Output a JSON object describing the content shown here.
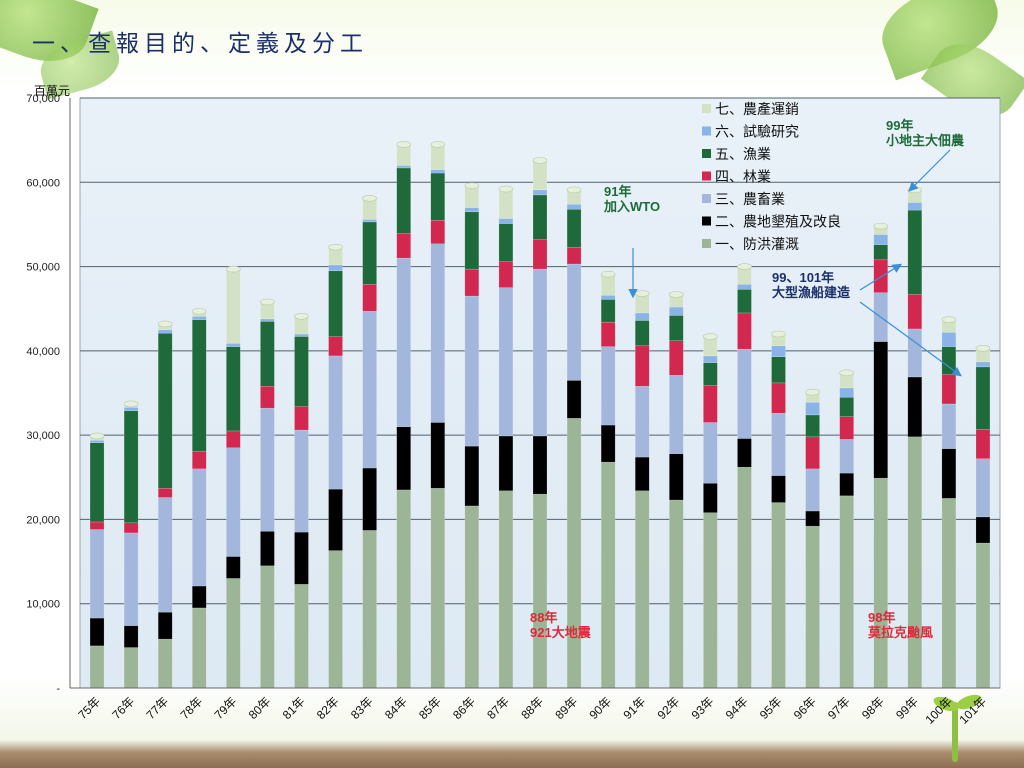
{
  "slide": {
    "title": "一、查報目的、定義及分工"
  },
  "chart_data": {
    "type": "bar",
    "stacked": true,
    "ylabel": "百萬元",
    "ylim": [
      0,
      70000
    ],
    "yticks": [
      "-",
      "10,000",
      "20,000",
      "30,000",
      "40,000",
      "50,000",
      "60,000",
      "70,000"
    ],
    "grid": true,
    "legend_position": "top-right",
    "categories": [
      "75年",
      "76年",
      "77年",
      "78年",
      "79年",
      "80年",
      "81年",
      "82年",
      "83年",
      "84年",
      "85年",
      "86年",
      "87年",
      "88年",
      "89年",
      "90年",
      "91年",
      "92年",
      "93年",
      "94年",
      "95年",
      "96年",
      "97年",
      "98年",
      "99年",
      "100年",
      "101年"
    ],
    "series": [
      {
        "name": "一、防洪灌溉",
        "color": "#9cb596",
        "values": [
          5000,
          4800,
          5800,
          9500,
          13000,
          14500,
          12300,
          16300,
          18700,
          23500,
          23700,
          21600,
          23400,
          23000,
          32000,
          26800,
          23400,
          22300,
          20800,
          26200,
          22000,
          19200,
          22800,
          24900,
          29800,
          22500,
          17200
        ]
      },
      {
        "name": "二、農地墾殖及改良",
        "color": "#000000",
        "values": [
          3300,
          2600,
          3200,
          2600,
          2600,
          4100,
          6200,
          7300,
          7400,
          7500,
          7800,
          7100,
          6500,
          6900,
          4500,
          4400,
          4000,
          5500,
          3500,
          3400,
          3200,
          1800,
          2700,
          16200,
          7100,
          5900,
          3100
        ]
      },
      {
        "name": "三、農畜業",
        "color": "#a3b6dc",
        "values": [
          10500,
          11000,
          13600,
          13900,
          12900,
          14600,
          12100,
          15800,
          18600,
          20000,
          21200,
          17800,
          17600,
          19800,
          13800,
          9300,
          8400,
          9300,
          7200,
          10600,
          7400,
          5000,
          4000,
          5800,
          5700,
          5300,
          6900
        ]
      },
      {
        "name": "四、林業",
        "color": "#d2284f",
        "values": [
          900,
          1200,
          1100,
          2100,
          2000,
          2600,
          2800,
          2300,
          3200,
          2900,
          2800,
          3200,
          3100,
          3500,
          2000,
          2900,
          4800,
          4100,
          4400,
          4300,
          3600,
          3800,
          2700,
          3900,
          4100,
          3500,
          3500
        ]
      },
      {
        "name": "五、漁業",
        "color": "#1e6a3b",
        "values": [
          9400,
          13300,
          18400,
          15600,
          10000,
          7700,
          8300,
          7800,
          7400,
          7800,
          5600,
          6800,
          4500,
          5300,
          4500,
          2700,
          3000,
          3000,
          2700,
          2800,
          3100,
          2600,
          2300,
          1800,
          10000,
          3300,
          7400
        ]
      },
      {
        "name": "六、試驗研究",
        "color": "#8ab4e8",
        "values": [
          300,
          400,
          400,
          400,
          400,
          300,
          300,
          700,
          300,
          300,
          400,
          500,
          600,
          600,
          600,
          500,
          900,
          1000,
          800,
          600,
          1300,
          1500,
          1100,
          1200,
          900,
          1700,
          600
        ]
      },
      {
        "name": "七、農產運銷",
        "color": "#d3e2c4",
        "values": [
          500,
          400,
          700,
          600,
          8800,
          2000,
          2100,
          2100,
          2500,
          2500,
          3000,
          2600,
          3500,
          3500,
          1700,
          2500,
          2300,
          1500,
          2300,
          2100,
          1400,
          1200,
          1800,
          1000,
          1500,
          1500,
          1600
        ]
      }
    ],
    "annotations": [
      {
        "text": [
          "99年",
          "小地主大佃農"
        ],
        "color": "#1e6a3b"
      },
      {
        "text": [
          "91年",
          "加入WTO"
        ],
        "color": "#1e6a3b"
      },
      {
        "text": [
          "99、101年",
          "大型漁船建造"
        ],
        "color": "#1b2f6b"
      },
      {
        "text": [
          "88年",
          "921大地震"
        ],
        "color": "#e0283a"
      },
      {
        "text": [
          "98年",
          "莫拉克颱風"
        ],
        "color": "#e0283a"
      }
    ]
  }
}
